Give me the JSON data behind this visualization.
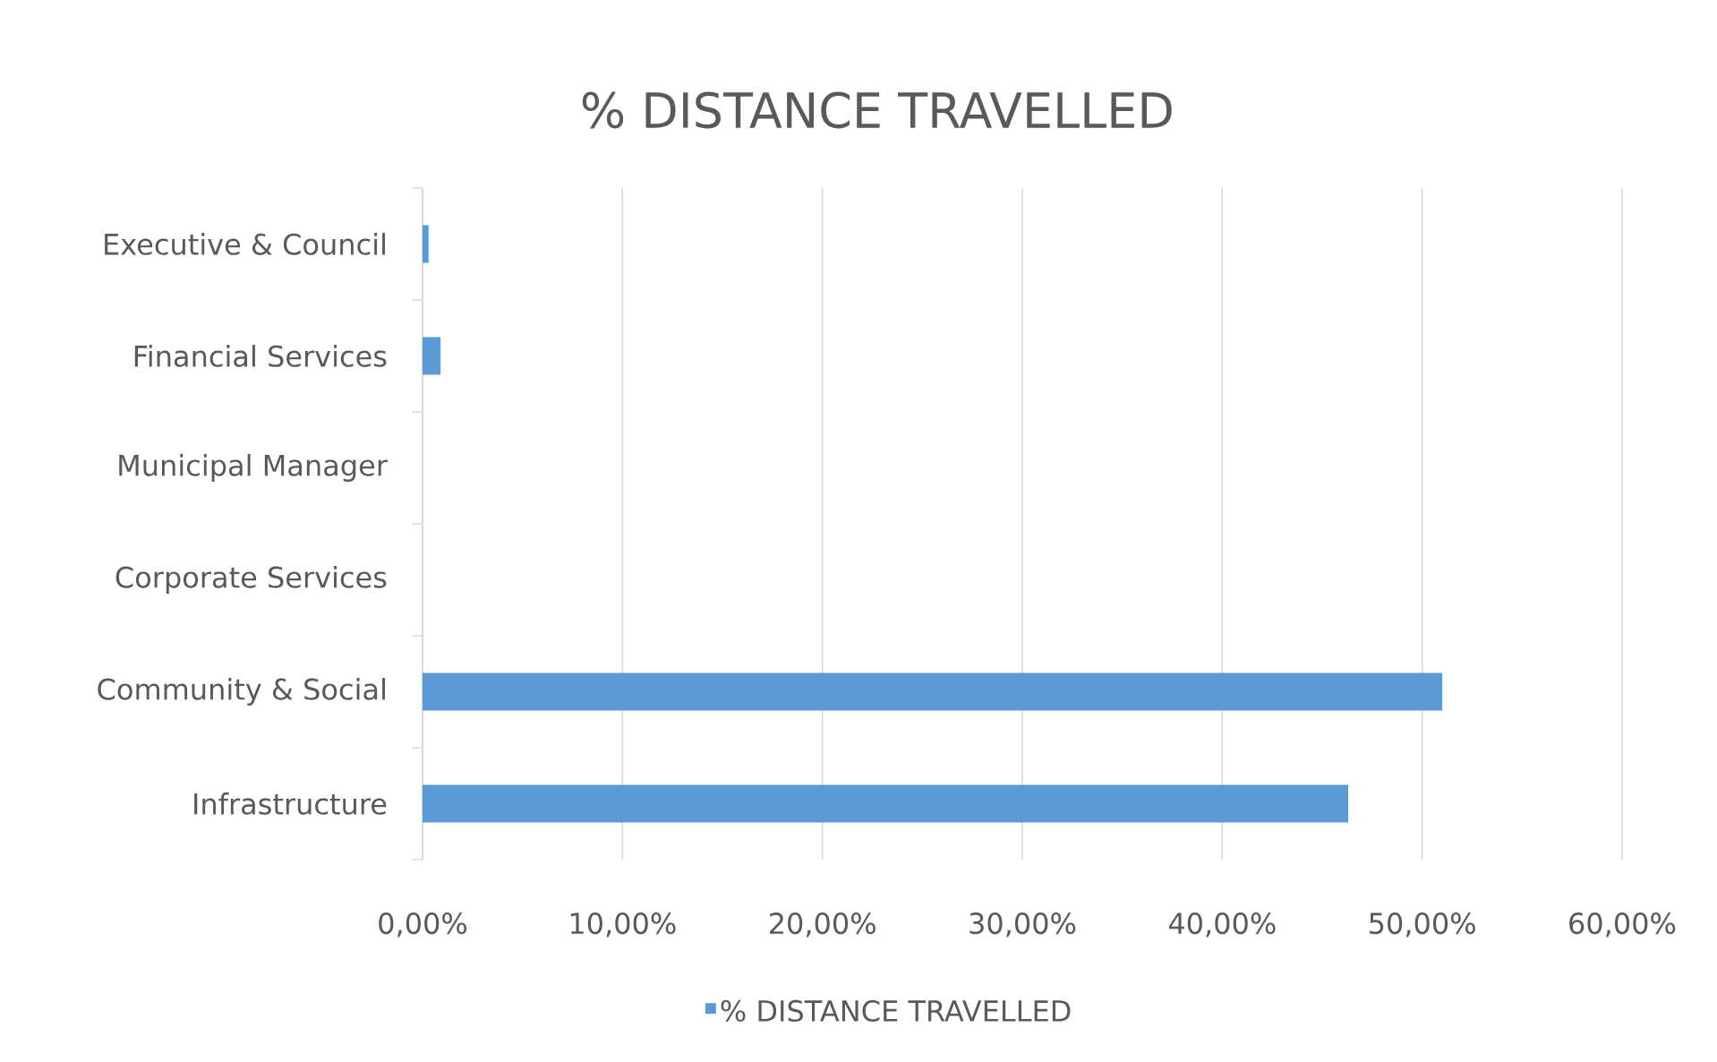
{
  "chart_data": {
    "type": "bar",
    "orientation": "horizontal",
    "title": "% DISTANCE TRAVELLED",
    "categories": [
      "Executive & Council",
      "Financial Services",
      "Municipal Manager",
      "Corporate Services",
      "Community & Social",
      "Infrastructure"
    ],
    "series": [
      {
        "name": "% DISTANCE TRAVELLED",
        "color": "#5b9bd5",
        "values": [
          0.3,
          0.9,
          0,
          0,
          51.0,
          46.3
        ]
      }
    ],
    "xlim": [
      0,
      60
    ],
    "xticks": [
      {
        "value": 0,
        "label": "0,00%"
      },
      {
        "value": 10,
        "label": "10,00%"
      },
      {
        "value": 20,
        "label": "20,00%"
      },
      {
        "value": 30,
        "label": "30,00%"
      },
      {
        "value": 40,
        "label": "40,00%"
      },
      {
        "value": 50,
        "label": "50,00%"
      },
      {
        "value": 60,
        "label": "60,00%"
      }
    ],
    "grid": "x",
    "legend": "bottom"
  }
}
